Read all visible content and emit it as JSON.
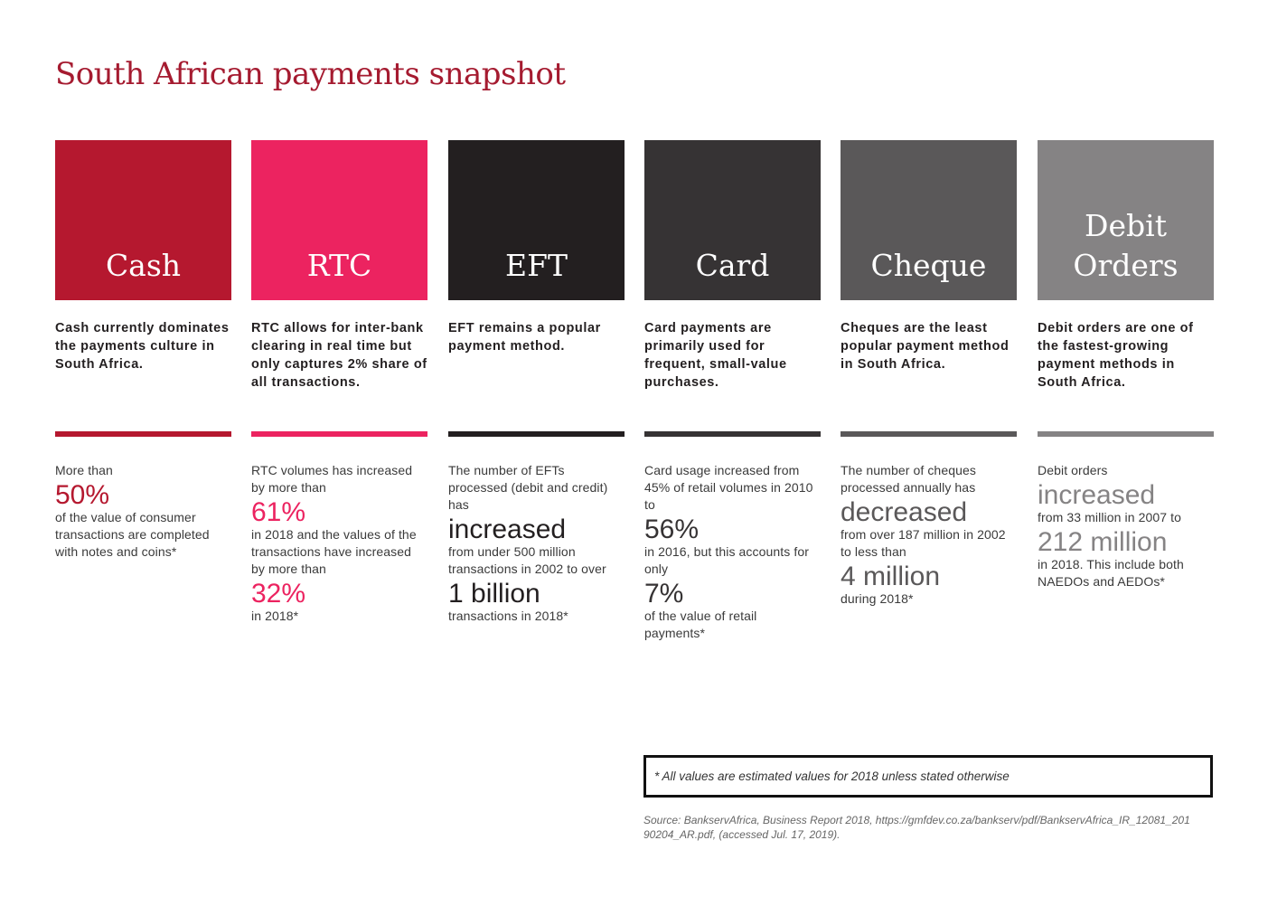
{
  "title": "South African payments snapshot",
  "columns": [
    {
      "name": "Cash",
      "color": "#b5182f",
      "description": "Cash currently dominates the payments culture in South Africa.",
      "parts": [
        {
          "kind": "small",
          "text": "More than"
        },
        {
          "kind": "big",
          "text": "50%"
        },
        {
          "kind": "small",
          "text": "of the value of consumer transactions are completed with notes and coins*"
        }
      ]
    },
    {
      "name": "RTC",
      "color": "#ec2360",
      "description": "RTC allows for inter-bank clearing in real time but only captures 2% share of all transactions.",
      "parts": [
        {
          "kind": "small",
          "text": "RTC volumes has increased by more than"
        },
        {
          "kind": "big",
          "text": "61%"
        },
        {
          "kind": "small",
          "text": "in 2018 and the values of the transactions have increased by more than"
        },
        {
          "kind": "big",
          "text": "32%"
        },
        {
          "kind": "small",
          "text": "in 2018*"
        }
      ]
    },
    {
      "name": "EFT",
      "color": "#231f20",
      "description": "EFT remains a popular payment method.",
      "parts": [
        {
          "kind": "small",
          "text": "The number of EFTs processed (debit and credit) has"
        },
        {
          "kind": "big",
          "text": "increased"
        },
        {
          "kind": "small",
          "text": "from under 500 million transactions in 2002 to over"
        },
        {
          "kind": "big",
          "text": "1 billion"
        },
        {
          "kind": "small",
          "text": "transactions in 2018*"
        }
      ]
    },
    {
      "name": "Card",
      "color": "#363334",
      "description": "Card payments are primarily used for frequent, small-value purchases.",
      "parts": [
        {
          "kind": "small",
          "text": "Card usage increased from 45% of retail volumes in 2010 to"
        },
        {
          "kind": "big",
          "text": "56%"
        },
        {
          "kind": "small",
          "text": "in 2016, but this accounts for only"
        },
        {
          "kind": "big",
          "text": "7%"
        },
        {
          "kind": "small",
          "text": "of the value of retail payments*"
        }
      ]
    },
    {
      "name": "Cheque",
      "color": "#5a5859",
      "description": "Cheques are the least popular payment method in South Africa.",
      "parts": [
        {
          "kind": "small",
          "text": "The number of cheques processed annually has"
        },
        {
          "kind": "big",
          "text": "decreased"
        },
        {
          "kind": "small",
          "text": "from over 187 million in 2002 to less than"
        },
        {
          "kind": "big",
          "text": "4 million"
        },
        {
          "kind": "small",
          "text": "during 2018*"
        }
      ]
    },
    {
      "name": "Debit Orders",
      "color": "#858384",
      "description": "Debit orders are one of the fastest-growing payment methods in South Africa.",
      "parts": [
        {
          "kind": "small",
          "text": "Debit orders"
        },
        {
          "kind": "big",
          "text": "increased"
        },
        {
          "kind": "small",
          "text": "from 33 million in 2007 to"
        },
        {
          "kind": "big",
          "text": "212 million"
        },
        {
          "kind": "small",
          "text": "in 2018. This include both NAEDOs and AEDOs*"
        }
      ]
    }
  ],
  "footnote": "* All values are estimated values for 2018 unless stated otherwise",
  "source": "Source: BankservAfrica, Business Report 2018, https://gmfdev.co.za/bankserv/pdf/BankservAfrica_IR_12081_20190204_AR.pdf, (accessed Jul. 17, 2019)."
}
